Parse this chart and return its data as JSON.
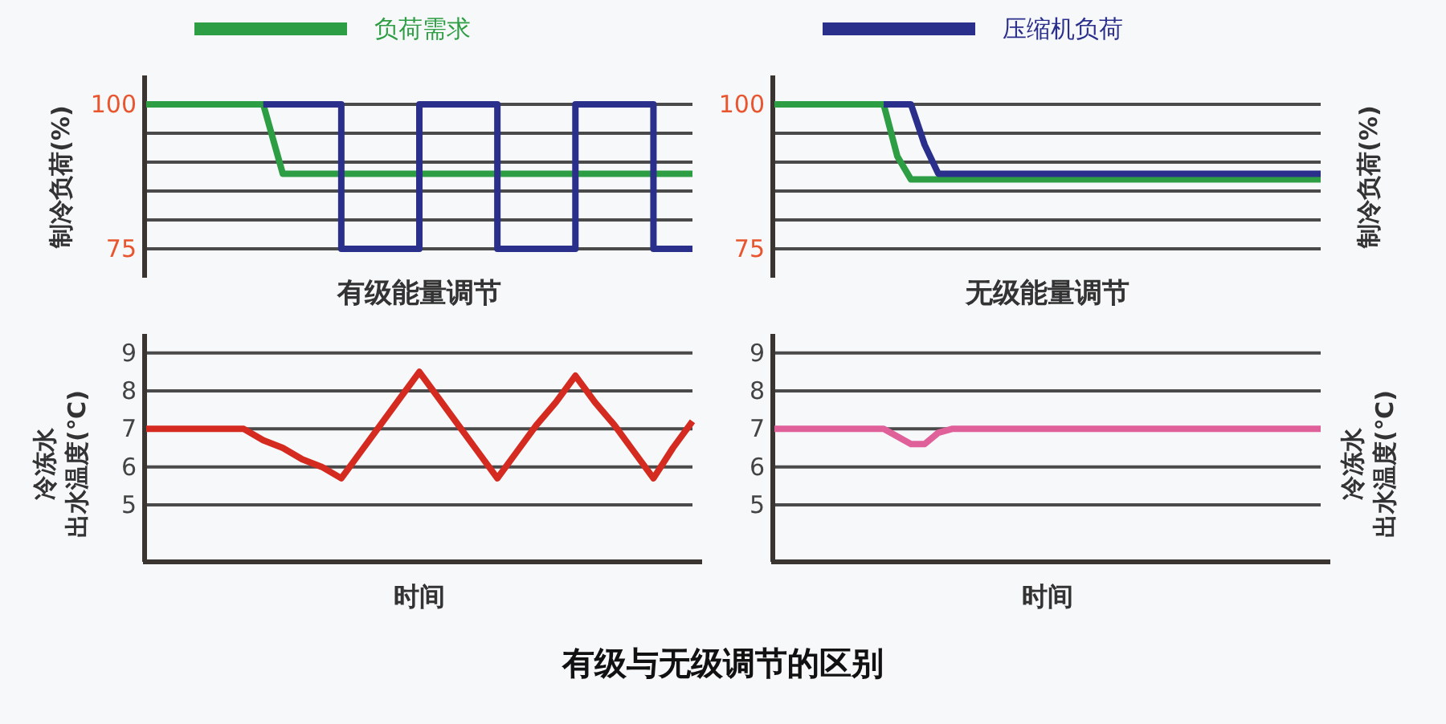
{
  "chart_data": [
    {
      "type": "line",
      "ylabel": "制冷负荷(%)",
      "legend": "top",
      "grid": "y",
      "tick_labels": "y",
      "ylim": [
        70,
        105
      ],
      "yticks": [
        100,
        {
          "value": 95,
          "label": null
        },
        {
          "value": 90,
          "label": null
        },
        {
          "value": 85,
          "label": null
        },
        {
          "value": 80,
          "label": null
        },
        75
      ],
      "categories": [
        null,
        null,
        null,
        null,
        null,
        null,
        null,
        null,
        null,
        null,
        null,
        null,
        null,
        null,
        null,
        null,
        null,
        null,
        null,
        null,
        null,
        null,
        null,
        null,
        null,
        null,
        null,
        null,
        null
      ],
      "series": [
        {
          "name": "负荷需求",
          "color": "#2e9e44",
          "values": [
            100,
            100,
            100,
            100,
            100,
            100,
            100,
            88,
            88,
            88,
            88,
            88,
            88,
            88,
            88,
            88,
            88,
            88,
            88,
            88,
            88,
            88,
            88,
            88,
            88,
            88,
            88,
            88,
            88
          ]
        },
        {
          "type": "step",
          "color": "#2b2f8c",
          "values": [
            null,
            null,
            null,
            null,
            null,
            null,
            100,
            100,
            100,
            100,
            75,
            75,
            75,
            75,
            100,
            100,
            100,
            100,
            75,
            75,
            75,
            75,
            100,
            100,
            100,
            100,
            75,
            75,
            75
          ]
        }
      ]
    },
    {
      "type": "line",
      "ylabel": "制冷负荷(%)",
      "legend": "top",
      "grid": "y",
      "tick_labels": "y",
      "ylim": [
        70,
        105
      ],
      "yticks": [
        100,
        {
          "value": 95,
          "label": null
        },
        {
          "value": 90,
          "label": null
        },
        {
          "value": 85,
          "label": null
        },
        {
          "value": 80,
          "label": null
        },
        75
      ],
      "categories": [
        null,
        null,
        null,
        null,
        null,
        null,
        null,
        null,
        null,
        null,
        null,
        null,
        null,
        null,
        null,
        null,
        null,
        null,
        null,
        null,
        null,
        null,
        null,
        null,
        null,
        null,
        null,
        null,
        null,
        null,
        null,
        null,
        null,
        null,
        null,
        null,
        null,
        null,
        null,
        null,
        null
      ],
      "series": [
        {
          "color": "#2e9e44",
          "values": [
            100,
            100,
            100,
            100,
            100,
            100,
            100,
            100,
            100,
            91,
            87,
            87,
            87,
            87,
            87,
            87,
            87,
            87,
            87,
            87,
            87,
            87,
            87,
            87,
            87,
            87,
            87,
            87,
            87,
            87,
            87,
            87,
            87,
            87,
            87,
            87,
            87,
            87,
            87,
            87,
            87
          ]
        },
        {
          "name": "压缩机负荷",
          "color": "#2b2f8c",
          "values": [
            null,
            null,
            null,
            null,
            null,
            null,
            null,
            null,
            100,
            100,
            100,
            93,
            88,
            88,
            88,
            88,
            88,
            88,
            88,
            88,
            88,
            88,
            88,
            88,
            88,
            88,
            88,
            88,
            88,
            88,
            88,
            88,
            88,
            88,
            88,
            88,
            88,
            88,
            88,
            88,
            88
          ]
        }
      ]
    },
    {
      "type": "line",
      "title": "有级能量调节",
      "xlabel": "时间",
      "ylabel": "冷冻水出水温度(℃)",
      "grid": "y",
      "tick_labels": "y",
      "ylim": [
        3.5,
        9.5
      ],
      "yticks": [
        9,
        8,
        7,
        6,
        5
      ],
      "annotations": [
        "有级与无级调节的区别"
      ],
      "categories": [
        null,
        null,
        null,
        null,
        null,
        null,
        null,
        null,
        null,
        null,
        null,
        null,
        null,
        null,
        null,
        null,
        null,
        null,
        null,
        null,
        null,
        null,
        null,
        null,
        null,
        null,
        null,
        null,
        null
      ],
      "series": [
        {
          "color": "#d42a20",
          "values": [
            7,
            7,
            7,
            7,
            7,
            7,
            6.7,
            6.5,
            6.2,
            6.0,
            5.7,
            6.4,
            7.1,
            7.8,
            8.5,
            7.8,
            7.1,
            6.4,
            5.7,
            6.4,
            7.1,
            7.7,
            8.4,
            7.7,
            7.1,
            6.4,
            5.7,
            6.5,
            7.2
          ]
        }
      ]
    },
    {
      "type": "line",
      "title": "无级能量调节",
      "xlabel": "时间",
      "ylabel": "冷冻水出水温度(℃)",
      "grid": "y",
      "tick_labels": "y",
      "ylim": [
        3.5,
        9.5
      ],
      "yticks": [
        9,
        8,
        7,
        6,
        5
      ],
      "categories": [
        null,
        null,
        null,
        null,
        null,
        null,
        null,
        null,
        null,
        null,
        null,
        null,
        null,
        null,
        null,
        null,
        null,
        null,
        null,
        null,
        null,
        null,
        null,
        null,
        null,
        null,
        null,
        null,
        null,
        null,
        null,
        null,
        null,
        null,
        null,
        null,
        null,
        null,
        null,
        null,
        null
      ],
      "series": [
        {
          "color": "#e0609a",
          "values": [
            7,
            7,
            7,
            7,
            7,
            7,
            7,
            7,
            7,
            6.8,
            6.6,
            6.6,
            6.9,
            7,
            7,
            7,
            7,
            7,
            7,
            7,
            7,
            7,
            7,
            7,
            7,
            7,
            7,
            7,
            7,
            7,
            7,
            7,
            7,
            7,
            7,
            7,
            7,
            7,
            7,
            7,
            7
          ]
        }
      ]
    }
  ]
}
